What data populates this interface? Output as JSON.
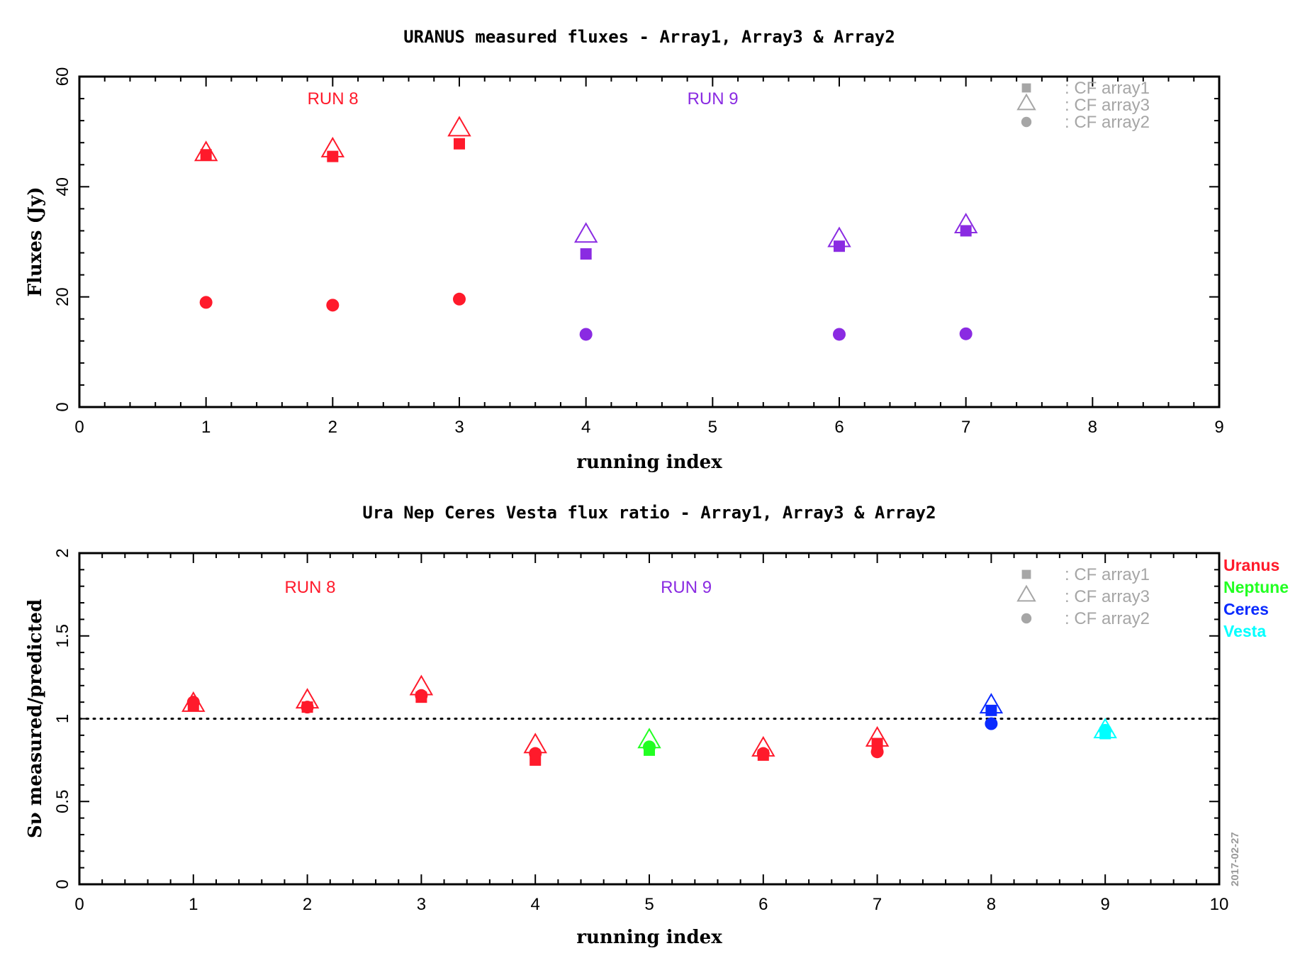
{
  "date_stamp": "2017-02-27",
  "chart_data": [
    {
      "type": "scatter",
      "title": "URANUS measured fluxes - Array1, Array3  & Array2",
      "xlabel": "running index",
      "ylabel": "Fluxes (Jy)",
      "xlim": [
        0,
        9
      ],
      "ylim": [
        0,
        60
      ],
      "xticks": [
        0,
        1,
        2,
        3,
        4,
        5,
        6,
        7,
        8,
        9
      ],
      "yticks": [
        0,
        20,
        40,
        60
      ],
      "grid": false,
      "legend": {
        "placement": "top-right",
        "entries": [
          {
            "marker": "square",
            "label": ": CF array1"
          },
          {
            "marker": "triangle",
            "label": ": CF array3"
          },
          {
            "marker": "circle",
            "label": ": CF array2"
          }
        ]
      },
      "annotations": [
        {
          "text": "RUN 8",
          "x": 1.8,
          "y": 55,
          "color": "#ff1a2b"
        },
        {
          "text": "RUN 9",
          "x": 4.8,
          "y": 55,
          "color": "#8a2be2"
        }
      ],
      "series": [
        {
          "marker": "square",
          "points": [
            {
              "x": 1,
              "y": 45.8,
              "color": "#ff1a2b"
            },
            {
              "x": 2,
              "y": 45.5,
              "color": "#ff1a2b"
            },
            {
              "x": 3,
              "y": 47.8,
              "color": "#ff1a2b"
            },
            {
              "x": 4,
              "y": 27.8,
              "color": "#8a2be2"
            },
            {
              "x": 6,
              "y": 29.2,
              "color": "#8a2be2"
            },
            {
              "x": 7,
              "y": 32.0,
              "color": "#8a2be2"
            }
          ]
        },
        {
          "marker": "triangle",
          "points": [
            {
              "x": 1,
              "y": 45.8,
              "color": "#ff1a2b"
            },
            {
              "x": 2,
              "y": 46.5,
              "color": "#ff1a2b"
            },
            {
              "x": 3,
              "y": 50.3,
              "color": "#ff1a2b"
            },
            {
              "x": 4,
              "y": 31.0,
              "color": "#8a2be2"
            },
            {
              "x": 6,
              "y": 30.2,
              "color": "#8a2be2"
            },
            {
              "x": 7,
              "y": 32.7,
              "color": "#8a2be2"
            }
          ]
        },
        {
          "marker": "circle",
          "points": [
            {
              "x": 1,
              "y": 19.0,
              "color": "#ff1a2b"
            },
            {
              "x": 2,
              "y": 18.5,
              "color": "#ff1a2b"
            },
            {
              "x": 3,
              "y": 19.6,
              "color": "#ff1a2b"
            },
            {
              "x": 4,
              "y": 13.2,
              "color": "#8a2be2"
            },
            {
              "x": 6,
              "y": 13.2,
              "color": "#8a2be2"
            },
            {
              "x": 7,
              "y": 13.3,
              "color": "#8a2be2"
            }
          ]
        }
      ]
    },
    {
      "type": "scatter",
      "title": "Ura Nep Ceres Vesta flux ratio - Array1, Array3 & Array2",
      "xlabel": "running index",
      "ylabel": "Sν measured/predicted",
      "xlim": [
        0,
        10
      ],
      "ylim": [
        0,
        2
      ],
      "xticks": [
        0,
        1,
        2,
        3,
        4,
        5,
        6,
        7,
        8,
        9,
        10
      ],
      "yticks": [
        0,
        0.5,
        1,
        1.5,
        2
      ],
      "reference_line": {
        "y": 1,
        "style": "dotted"
      },
      "grid": false,
      "legend": {
        "placement": "top-right",
        "entries": [
          {
            "marker": "square",
            "label": ": CF array1"
          },
          {
            "marker": "triangle",
            "label": ": CF array3"
          },
          {
            "marker": "circle",
            "label": ": CF array2"
          }
        ]
      },
      "target_legend": [
        {
          "name": "Uranus",
          "color": "#ff1a2b"
        },
        {
          "name": "Neptune",
          "color": "#22ff22"
        },
        {
          "name": "Ceres",
          "color": "#0a2bff"
        },
        {
          "name": "Vesta",
          "color": "#00ffff"
        }
      ],
      "annotations": [
        {
          "text": "RUN 8",
          "x": 1.8,
          "y": 1.76,
          "color": "#ff1a2b"
        },
        {
          "text": "RUN 9",
          "x": 5.1,
          "y": 1.76,
          "color": "#8a2be2"
        }
      ],
      "series": [
        {
          "marker": "square",
          "points": [
            {
              "x": 1,
              "y": 1.08,
              "color": "#ff1a2b"
            },
            {
              "x": 2,
              "y": 1.07,
              "color": "#ff1a2b"
            },
            {
              "x": 3,
              "y": 1.13,
              "color": "#ff1a2b"
            },
            {
              "x": 4,
              "y": 0.75,
              "color": "#ff1a2b"
            },
            {
              "x": 5,
              "y": 0.81,
              "color": "#22ff22"
            },
            {
              "x": 6,
              "y": 0.78,
              "color": "#ff1a2b"
            },
            {
              "x": 7,
              "y": 0.85,
              "color": "#ff1a2b"
            },
            {
              "x": 8,
              "y": 1.05,
              "color": "#0a2bff"
            },
            {
              "x": 9,
              "y": 0.91,
              "color": "#00ffff"
            }
          ]
        },
        {
          "marker": "triangle",
          "points": [
            {
              "x": 1,
              "y": 1.08,
              "color": "#ff1a2b"
            },
            {
              "x": 2,
              "y": 1.1,
              "color": "#ff1a2b"
            },
            {
              "x": 3,
              "y": 1.18,
              "color": "#ff1a2b"
            },
            {
              "x": 4,
              "y": 0.83,
              "color": "#ff1a2b"
            },
            {
              "x": 5,
              "y": 0.86,
              "color": "#22ff22"
            },
            {
              "x": 6,
              "y": 0.81,
              "color": "#ff1a2b"
            },
            {
              "x": 7,
              "y": 0.87,
              "color": "#ff1a2b"
            },
            {
              "x": 8,
              "y": 1.07,
              "color": "#0a2bff"
            },
            {
              "x": 9,
              "y": 0.92,
              "color": "#00ffff"
            }
          ]
        },
        {
          "marker": "circle",
          "points": [
            {
              "x": 1,
              "y": 1.1,
              "color": "#ff1a2b"
            },
            {
              "x": 2,
              "y": 1.07,
              "color": "#ff1a2b"
            },
            {
              "x": 3,
              "y": 1.14,
              "color": "#ff1a2b"
            },
            {
              "x": 4,
              "y": 0.79,
              "color": "#ff1a2b"
            },
            {
              "x": 5,
              "y": 0.83,
              "color": "#22ff22"
            },
            {
              "x": 6,
              "y": 0.79,
              "color": "#ff1a2b"
            },
            {
              "x": 7,
              "y": 0.8,
              "color": "#ff1a2b"
            },
            {
              "x": 8,
              "y": 0.97,
              "color": "#0a2bff"
            },
            {
              "x": 9,
              "y": 0.93,
              "color": "#00ffff"
            }
          ]
        }
      ]
    }
  ]
}
